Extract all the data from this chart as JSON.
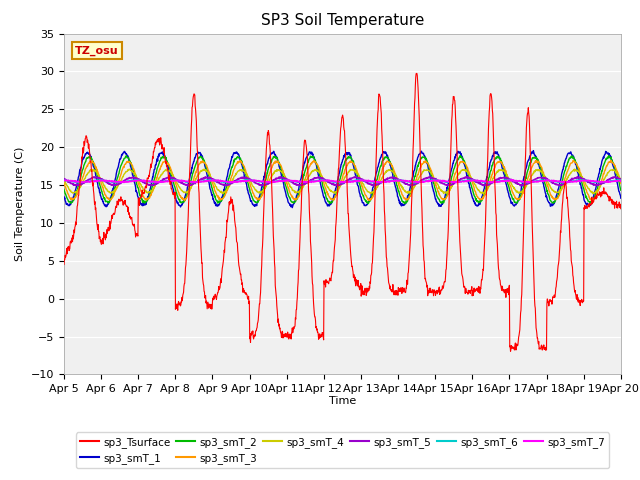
{
  "title": "SP3 Soil Temperature",
  "xlabel": "Time",
  "ylabel": "Soil Temperature (C)",
  "ylim": [
    -10,
    35
  ],
  "yticks": [
    -10,
    -5,
    0,
    5,
    10,
    15,
    20,
    25,
    30,
    35
  ],
  "x_labels": [
    "Apr 5",
    "Apr 6",
    "Apr 7",
    "Apr 8",
    "Apr 9",
    "Apr 10",
    "Apr 11",
    "Apr 12",
    "Apr 13",
    "Apr 14",
    "Apr 15",
    "Apr 16",
    "Apr 17",
    "Apr 18",
    "Apr 19",
    "Apr 20"
  ],
  "tz_label": "TZ_osu",
  "fig_facecolor": "#ffffff",
  "plot_bg_color": "#f0f0f0",
  "series_colors": {
    "sp3_Tsurface": "#ff0000",
    "sp3_smT_1": "#0000cc",
    "sp3_smT_2": "#00bb00",
    "sp3_smT_3": "#ff9900",
    "sp3_smT_4": "#cccc00",
    "sp3_smT_5": "#9900cc",
    "sp3_smT_6": "#00cccc",
    "sp3_smT_7": "#ff00ff"
  },
  "legend_entries": [
    "sp3_Tsurface",
    "sp3_smT_1",
    "sp3_smT_2",
    "sp3_smT_3",
    "sp3_smT_4",
    "sp3_smT_5",
    "sp3_smT_6",
    "sp3_smT_7"
  ]
}
